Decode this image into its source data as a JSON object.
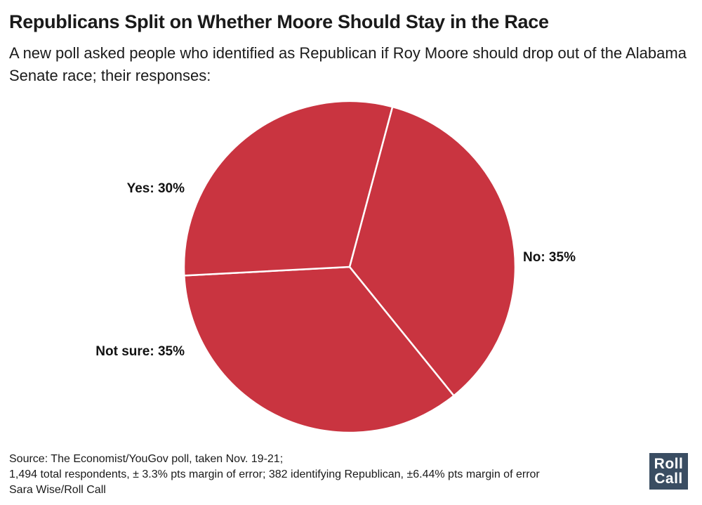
{
  "header": {
    "title": "Republicans Split on Whether Moore Should Stay in the Race",
    "subtitle": "A new poll asked people who identified as Republican if Roy Moore should drop out of the Alabama Senate race; their responses:"
  },
  "chart_data": {
    "type": "pie",
    "title": "Republicans Split on Whether Moore Should Stay in the Race",
    "subtitle": "A new poll asked people who identified as Republican if Roy Moore should drop out of the Alabama Senate race; their responses:",
    "slices": [
      {
        "label": "No",
        "value": 35,
        "display": "No: 35%"
      },
      {
        "label": "Not sure",
        "value": 35,
        "display": "Not sure: 35%"
      },
      {
        "label": "Yes",
        "value": 30,
        "display": "Yes: 30%"
      }
    ],
    "colors": {
      "slice": "#c93440",
      "border": "#ffffff"
    },
    "legend": "none"
  },
  "footer": {
    "source_line": "Source: The Economist/YouGov poll, taken Nov. 19-21;",
    "sample_line": "1,494 total respondents, ± 3.3% pts margin of error; 382 identifying Republican, ±6.44% pts margin of error",
    "credit_line": "Sara Wise/Roll Call"
  },
  "logo": {
    "line1": "Roll",
    "line2": "Call",
    "color": "#3a4d62"
  }
}
